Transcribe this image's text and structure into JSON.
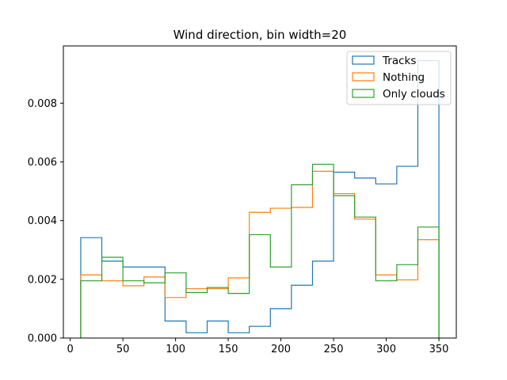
{
  "chart_data": {
    "type": "histogram-step",
    "title": "Wind direction, bin width=20",
    "xlabel": "",
    "ylabel": "",
    "xlim": [
      -6.5,
      366.5
    ],
    "ylim": [
      0,
      0.00995
    ],
    "xticks": [
      0,
      50,
      100,
      150,
      200,
      250,
      300,
      350
    ],
    "xtick_labels": [
      "0",
      "50",
      "100",
      "150",
      "200",
      "250",
      "300",
      "350"
    ],
    "yticks": [
      0,
      0.002,
      0.004,
      0.006,
      0.008
    ],
    "ytick_labels": [
      "0.000",
      "0.002",
      "0.004",
      "0.006",
      "0.008"
    ],
    "bin_edges": [
      10,
      30,
      50,
      70,
      90,
      110,
      130,
      150,
      170,
      190,
      210,
      230,
      250,
      270,
      290,
      310,
      330,
      350
    ],
    "grid": false,
    "legend_position": "top-right",
    "series": [
      {
        "name": "Tracks",
        "color": "#1f77b4",
        "values": [
          0.00342,
          0.00262,
          0.00242,
          0.00242,
          0.00058,
          0.00018,
          0.00058,
          0.00018,
          0.0004,
          0.001,
          0.0018,
          0.00262,
          0.00565,
          0.00545,
          0.00525,
          0.00585,
          0.00945
        ]
      },
      {
        "name": "Nothing",
        "color": "#ff7f0e",
        "values": [
          0.00215,
          0.00195,
          0.00178,
          0.00208,
          0.00138,
          0.00168,
          0.00168,
          0.00205,
          0.00428,
          0.00442,
          0.00445,
          0.00568,
          0.00492,
          0.00405,
          0.00215,
          0.00198,
          0.00335
        ]
      },
      {
        "name": "Only clouds",
        "color": "#2ca02c",
        "values": [
          0.00195,
          0.00275,
          0.00195,
          0.00188,
          0.00222,
          0.00155,
          0.00172,
          0.00152,
          0.00352,
          0.00242,
          0.00522,
          0.00592,
          0.00485,
          0.00412,
          0.00195,
          0.0025,
          0.00378
        ]
      }
    ]
  }
}
